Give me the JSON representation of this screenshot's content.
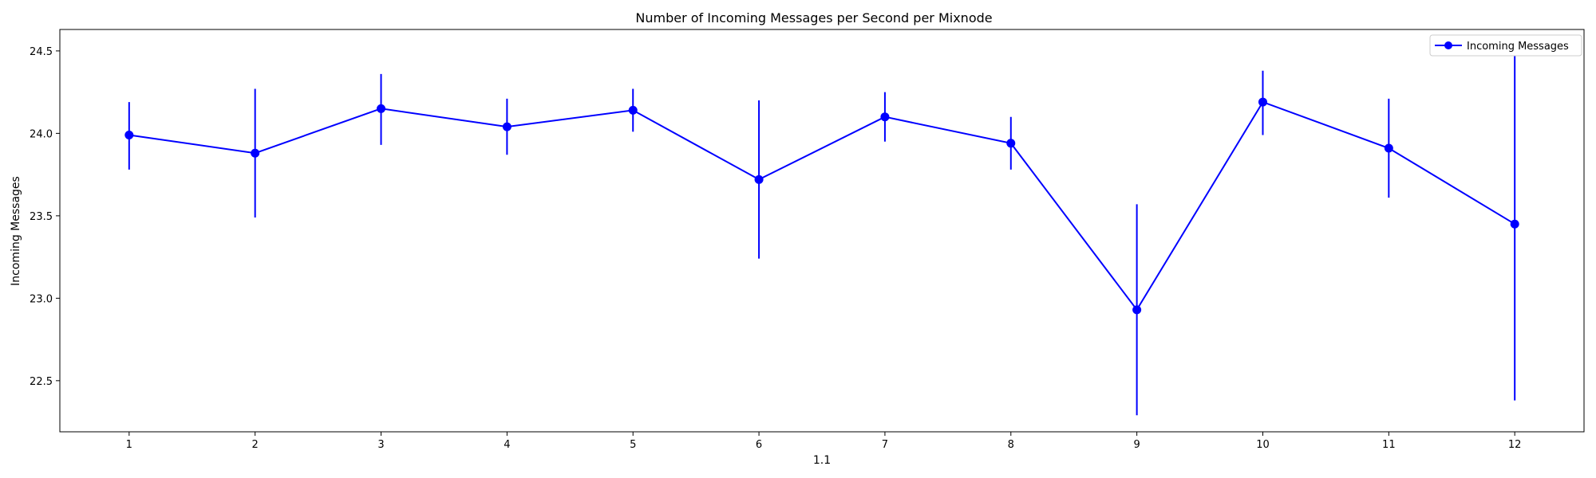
{
  "chart_data": {
    "type": "line",
    "title": "Number of Incoming Messages per Second per Mixnode",
    "xlabel": "1.1",
    "ylabel": "Incoming Messages",
    "x": [
      1,
      2,
      3,
      4,
      5,
      6,
      7,
      8,
      9,
      10,
      11,
      12
    ],
    "xticks": [
      "1",
      "2",
      "3",
      "4",
      "5",
      "6",
      "7",
      "8",
      "9",
      "10",
      "11",
      "12"
    ],
    "xlim": [
      0.45,
      12.55
    ],
    "ylim": [
      22.19,
      24.63
    ],
    "yticks": [
      22.5,
      23.0,
      23.5,
      24.0,
      24.5
    ],
    "ytick_labels": [
      "22.5",
      "23.0",
      "23.5",
      "24.0",
      "24.5"
    ],
    "grid": false,
    "legend_position": "top-right",
    "series": [
      {
        "name": "Incoming Messages",
        "color": "#0000ff",
        "marker": "circle",
        "values": [
          23.99,
          23.88,
          24.15,
          24.04,
          24.14,
          23.72,
          24.1,
          23.94,
          22.93,
          24.19,
          23.91,
          23.45
        ],
        "error_low": [
          23.78,
          23.49,
          23.93,
          23.87,
          24.01,
          23.24,
          23.95,
          23.78,
          22.29,
          23.99,
          23.61,
          22.38
        ],
        "error_high": [
          24.19,
          24.27,
          24.36,
          24.21,
          24.27,
          24.2,
          24.25,
          24.1,
          23.57,
          24.38,
          24.21,
          24.47
        ]
      }
    ]
  }
}
